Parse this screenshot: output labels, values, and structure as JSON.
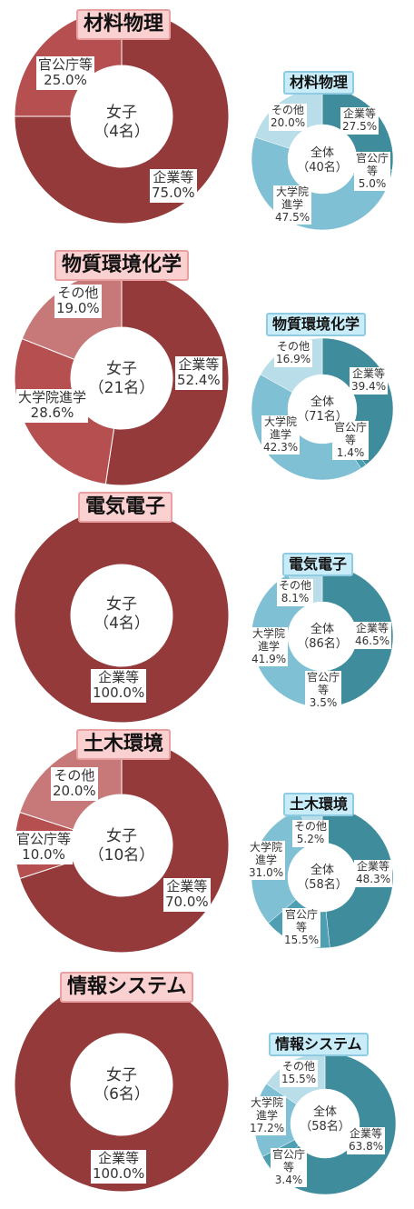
{
  "colors": {
    "female_series": [
      "#943a3a",
      "#b65050",
      "#c77878",
      "#ddaaaa"
    ],
    "all_series": [
      "#3e8c9c",
      "#4f9fb2",
      "#80c0d4",
      "#b9dde9"
    ]
  },
  "chart_data": [
    {
      "type": "pie",
      "variant": "donut",
      "group": "材料物理",
      "title": "材料物理",
      "center_line1": "女子",
      "center_line2": "（4名）",
      "categories": [
        "企業等",
        "官公庁等"
      ],
      "values": [
        75.0,
        25.0
      ],
      "labels": [
        "75.0%",
        "25.0%"
      ]
    },
    {
      "type": "pie",
      "variant": "donut",
      "group": "材料物理",
      "title": "材料物理",
      "center_line1": "全体",
      "center_line2": "（40名）",
      "categories": [
        "企業等",
        "官公庁等",
        "大学院進学",
        "その他"
      ],
      "values": [
        27.5,
        5.0,
        47.5,
        20.0
      ],
      "labels": [
        "27.5%",
        "5.0%",
        "47.5%",
        "20.0%"
      ]
    },
    {
      "type": "pie",
      "variant": "donut",
      "group": "物質環境化学",
      "title": "物質環境化学",
      "center_line1": "女子",
      "center_line2": "（21名）",
      "categories": [
        "企業等",
        "大学院進学",
        "その他"
      ],
      "values": [
        52.4,
        28.6,
        19.0
      ],
      "labels": [
        "52.4%",
        "28.6%",
        "19.0%"
      ]
    },
    {
      "type": "pie",
      "variant": "donut",
      "group": "物質環境化学",
      "title": "物質環境化学",
      "center_line1": "全体",
      "center_line2": "（71名）",
      "categories": [
        "企業等",
        "官公庁等",
        "大学院進学",
        "その他"
      ],
      "values": [
        39.4,
        1.4,
        42.3,
        16.9
      ],
      "labels": [
        "39.4%",
        "1.4%",
        "42.3%",
        "16.9%"
      ]
    },
    {
      "type": "pie",
      "variant": "donut",
      "group": "電気電子",
      "title": "電気電子",
      "center_line1": "女子",
      "center_line2": "（4名）",
      "categories": [
        "企業等"
      ],
      "values": [
        100.0
      ],
      "labels": [
        "100.0%"
      ]
    },
    {
      "type": "pie",
      "variant": "donut",
      "group": "電気電子",
      "title": "電気電子",
      "center_line1": "全体",
      "center_line2": "（86名）",
      "categories": [
        "企業等",
        "官公庁等",
        "大学院進学",
        "その他"
      ],
      "values": [
        46.5,
        3.5,
        41.9,
        8.1
      ],
      "labels": [
        "46.5%",
        "3.5%",
        "41.9%",
        "8.1%"
      ]
    },
    {
      "type": "pie",
      "variant": "donut",
      "group": "土木環境",
      "title": "土木環境",
      "center_line1": "女子",
      "center_line2": "（10名）",
      "categories": [
        "企業等",
        "官公庁等",
        "その他"
      ],
      "values": [
        70.0,
        10.0,
        20.0
      ],
      "labels": [
        "70.0%",
        "10.0%",
        "20.0%"
      ]
    },
    {
      "type": "pie",
      "variant": "donut",
      "group": "土木環境",
      "title": "土木環境",
      "center_line1": "全体",
      "center_line2": "（58名）",
      "categories": [
        "企業等",
        "官公庁等",
        "大学院進学",
        "その他"
      ],
      "values": [
        48.3,
        15.5,
        31.0,
        5.2
      ],
      "labels": [
        "48.3%",
        "15.5%",
        "31.0%",
        "5.2%"
      ]
    },
    {
      "type": "pie",
      "variant": "donut",
      "group": "情報システム",
      "title": "情報システム",
      "center_line1": "女子",
      "center_line2": "（6名）",
      "categories": [
        "企業等"
      ],
      "values": [
        100.0
      ],
      "labels": [
        "100.0%"
      ]
    },
    {
      "type": "pie",
      "variant": "donut",
      "group": "情報システム",
      "title": "情報システム",
      "center_line1": "全体",
      "center_line2": "（58名）",
      "categories": [
        "企業等",
        "官公庁等",
        "大学院進学",
        "その他"
      ],
      "values": [
        63.8,
        3.4,
        17.2,
        15.5
      ],
      "labels": [
        "63.8%",
        "3.4%",
        "17.2%",
        "15.5%"
      ]
    }
  ]
}
